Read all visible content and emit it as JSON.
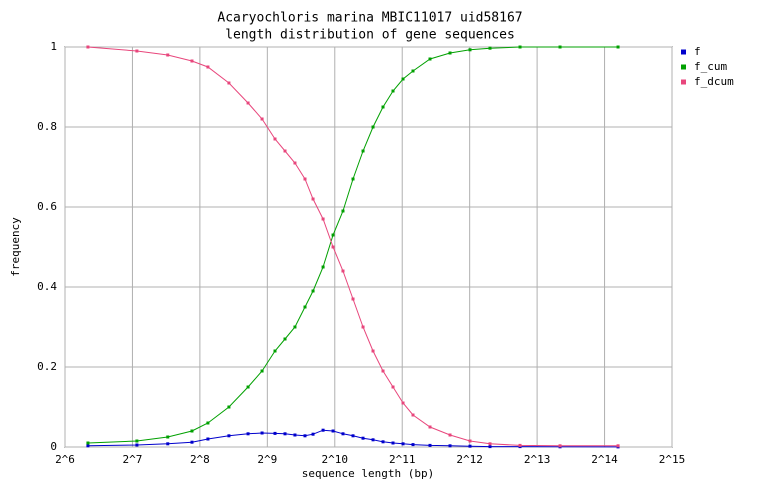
{
  "chart_data": {
    "type": "line",
    "title": "Acaryochloris marina MBIC11017 uid58167",
    "subtitle": "length distribution of gene sequences",
    "x_label": "sequence length (bp)",
    "y_label": "frequency",
    "x_log_base": 2,
    "grid": true,
    "legend": "right",
    "xlim": [
      64,
      32768
    ],
    "xticks": [
      {
        "value": 64,
        "label": "2^6"
      },
      {
        "value": 128,
        "label": "2^7"
      },
      {
        "value": 256,
        "label": "2^8"
      },
      {
        "value": 512,
        "label": "2^9"
      },
      {
        "value": 1024,
        "label": "2^10"
      },
      {
        "value": 2048,
        "label": "2^11"
      },
      {
        "value": 4096,
        "label": "2^12"
      },
      {
        "value": 8192,
        "label": "2^13"
      },
      {
        "value": 16384,
        "label": "2^14"
      },
      {
        "value": 32768,
        "label": "2^15"
      }
    ],
    "ylim": [
      0,
      1
    ],
    "yticks": [
      0,
      0.2,
      0.4,
      0.6,
      0.8,
      1
    ],
    "x": [
      81,
      134,
      184,
      236,
      278,
      345,
      420,
      485,
      554,
      614,
      680,
      754,
      819,
      908,
      1006,
      1114,
      1235,
      1369,
      1517,
      1681,
      1863,
      2065,
      2288,
      2725,
      3347,
      4110,
      5048,
      6873,
      10368,
      18820
    ],
    "series": [
      {
        "name": "f",
        "color": "#0000cc",
        "values": [
          0.003,
          0.005,
          0.008,
          0.012,
          0.02,
          0.028,
          0.033,
          0.035,
          0.034,
          0.033,
          0.03,
          0.028,
          0.032,
          0.042,
          0.04,
          0.033,
          0.028,
          0.022,
          0.018,
          0.013,
          0.01,
          0.008,
          0.006,
          0.004,
          0.003,
          0.002,
          0.001,
          0.001,
          0.0005,
          0.0003
        ]
      },
      {
        "name": "f_cum",
        "color": "#00a000",
        "values": [
          0.01,
          0.015,
          0.025,
          0.04,
          0.06,
          0.1,
          0.15,
          0.19,
          0.24,
          0.27,
          0.3,
          0.35,
          0.39,
          0.45,
          0.53,
          0.59,
          0.67,
          0.74,
          0.8,
          0.85,
          0.89,
          0.92,
          0.94,
          0.97,
          0.985,
          0.993,
          0.997,
          1,
          1,
          1
        ]
      },
      {
        "name": "f_dcum",
        "color": "#e8467c",
        "values": [
          1,
          0.99,
          0.98,
          0.965,
          0.95,
          0.91,
          0.86,
          0.82,
          0.77,
          0.74,
          0.71,
          0.67,
          0.62,
          0.57,
          0.5,
          0.44,
          0.37,
          0.3,
          0.24,
          0.19,
          0.15,
          0.11,
          0.08,
          0.05,
          0.03,
          0.015,
          0.008,
          0.004,
          0.003,
          0.003
        ]
      }
    ]
  }
}
